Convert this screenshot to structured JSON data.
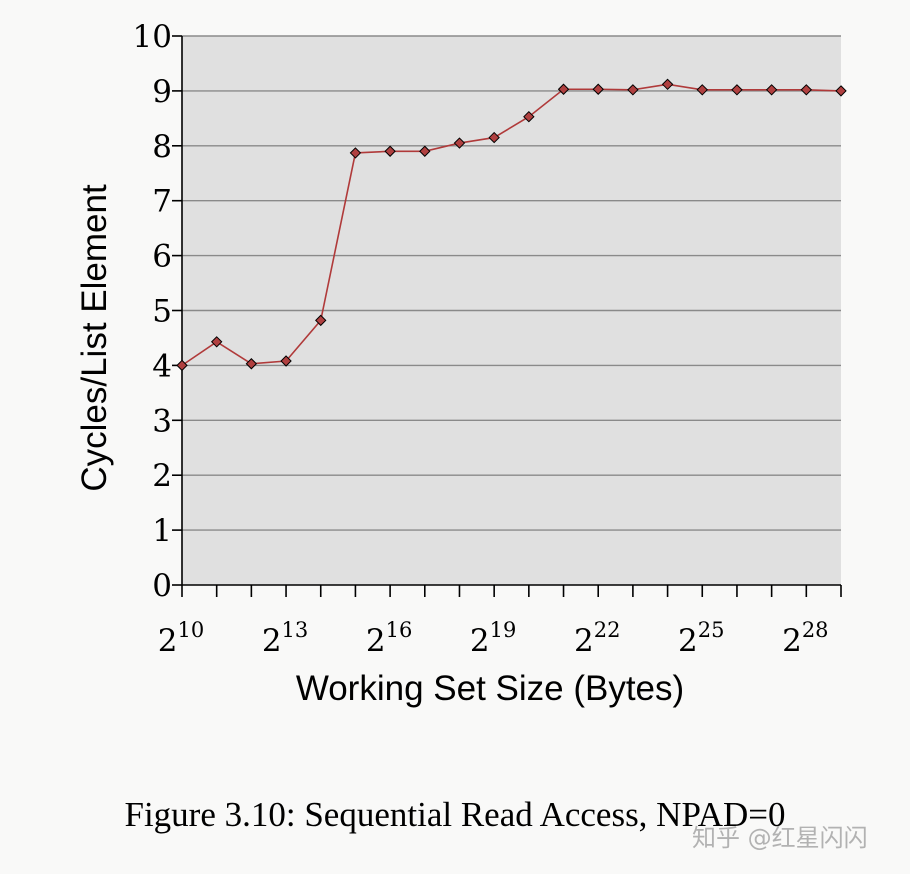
{
  "chart_data": {
    "type": "line",
    "title": "",
    "xlabel": "Working Set Size (Bytes)",
    "ylabel": "Cycles/List Element",
    "x_scale": "log2",
    "xlim_exponent": [
      10,
      29
    ],
    "ylim": [
      0,
      10
    ],
    "yticks": [
      0,
      1,
      2,
      3,
      4,
      5,
      6,
      7,
      8,
      9,
      10
    ],
    "xtick_exponents": [
      10,
      13,
      16,
      19,
      22,
      25,
      28
    ],
    "xtick_base": "2",
    "grid": "horizontal",
    "series": [
      {
        "name": "NPAD=0",
        "color": "#b03a3a",
        "marker_fill": "#b04040",
        "x_exponent": [
          10,
          11,
          12,
          13,
          14,
          15,
          16,
          17,
          18,
          19,
          20,
          21,
          22,
          23,
          24,
          25,
          26,
          27,
          28,
          29
        ],
        "values": [
          4.0,
          4.43,
          4.03,
          4.08,
          4.82,
          7.87,
          7.9,
          7.9,
          8.05,
          8.15,
          8.53,
          9.03,
          9.03,
          9.02,
          9.12,
          9.02,
          9.02,
          9.02,
          9.02,
          9.0
        ]
      }
    ]
  },
  "caption": "Figure 3.10: Sequential Read Access, NPAD=0",
  "watermark": "知乎 @红星闪闪",
  "colors": {
    "plot_background": "#e0e0e0",
    "grid": "#8a8a8a",
    "line": "#b03a3a",
    "marker": "#b04040"
  }
}
